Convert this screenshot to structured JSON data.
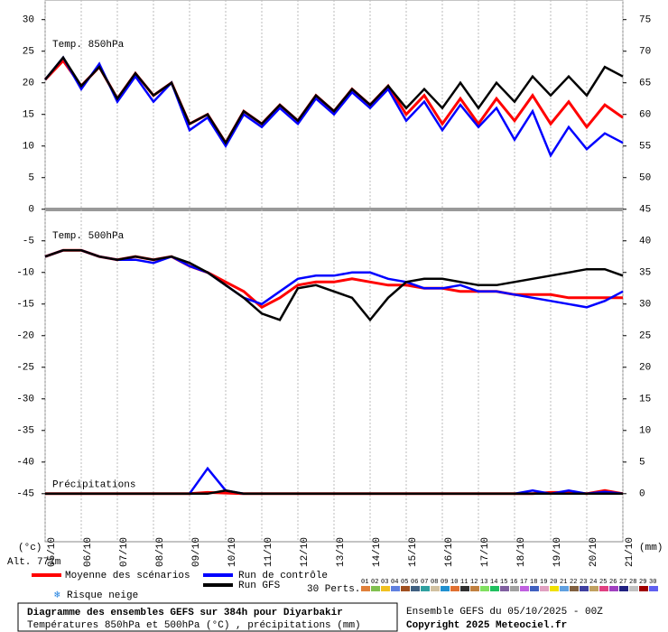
{
  "chart_data": {
    "type": "line",
    "title": "Diagramme des ensembles GEFS sur 384h pour Diyarbakir",
    "subtitle": "Températures 850hPa et 500hPa (°C) , précipitations (mm)",
    "run_info": "Ensemble GEFS du 05/10/2025 - 00Z",
    "copyright": "Copyright 2025 Meteociel.fr",
    "y_unit": "(°c)",
    "y2_unit": "(mm)",
    "altitude": "Alt. 771m",
    "snow_legend": "Risque neige",
    "x": [
      0,
      12,
      24,
      36,
      48,
      60,
      72,
      84,
      96,
      108,
      120,
      132,
      144,
      156,
      168,
      180,
      192,
      204,
      216,
      228,
      240,
      252,
      264,
      276,
      288,
      300,
      312,
      324,
      336,
      348,
      360,
      372,
      384
    ],
    "xlim": [
      0,
      384
    ],
    "xticks": [
      {
        "value": 0,
        "label": "05/10"
      },
      {
        "value": 24,
        "label": "06/10"
      },
      {
        "value": 48,
        "label": "07/10"
      },
      {
        "value": 72,
        "label": "08/10"
      },
      {
        "value": 96,
        "label": "09/10"
      },
      {
        "value": 120,
        "label": "10/10"
      },
      {
        "value": 144,
        "label": "11/10"
      },
      {
        "value": 168,
        "label": "12/10"
      },
      {
        "value": 192,
        "label": "13/10"
      },
      {
        "value": 216,
        "label": "14/10"
      },
      {
        "value": 240,
        "label": "15/10"
      },
      {
        "value": 264,
        "label": "16/10"
      },
      {
        "value": 288,
        "label": "17/10"
      },
      {
        "value": 312,
        "label": "18/10"
      },
      {
        "value": 336,
        "label": "19/10"
      },
      {
        "value": 360,
        "label": "20/10"
      },
      {
        "value": 384,
        "label": "21/10"
      }
    ],
    "ylim": [
      -52.6,
      33.1
    ],
    "yticks": [
      30,
      25,
      20,
      15,
      10,
      5,
      0,
      -5,
      -10,
      -15,
      -20,
      -25,
      -30,
      -35,
      -40,
      -45
    ],
    "y2lim": [
      -7.6,
      78.1
    ],
    "y2ticks": [
      75,
      70,
      65,
      60,
      55,
      50,
      45,
      40,
      35,
      30,
      25,
      20,
      15,
      10,
      5,
      0
    ],
    "grid": true,
    "series": [
      {
        "name": "Moyenne des scénarios",
        "color": "#ff0000"
      },
      {
        "name": "Run de contrôle",
        "color": "#0000ff"
      },
      {
        "name": "Run GFS",
        "color": "#000000"
      }
    ],
    "panels": [
      {
        "label": "Temp. 850hPa",
        "axis": "y",
        "values": [
          [
            20.5,
            23.5,
            19.5,
            22.5,
            17.5,
            21.5,
            18,
            20,
            13.5,
            15,
            10.5,
            15.5,
            13.5,
            16.5,
            14,
            18,
            15.5,
            19,
            16.5,
            19.5,
            15,
            18,
            13.5,
            17.5,
            13.5,
            17.5,
            14,
            18,
            13.5,
            17,
            13,
            16.5,
            14.5
          ],
          [
            20.5,
            24,
            19,
            23,
            17,
            21,
            17,
            20,
            12.5,
            14.5,
            10,
            15,
            13,
            16,
            13.5,
            17.5,
            15,
            18.5,
            16,
            19,
            14,
            17,
            12.5,
            16.5,
            13,
            16,
            11,
            15.5,
            8.5,
            13,
            9.5,
            12,
            10.5
          ],
          [
            20.5,
            24,
            19.5,
            22.5,
            17.5,
            21.5,
            18,
            20,
            13.5,
            15,
            10.5,
            15.5,
            13.5,
            16.5,
            14,
            18,
            15.5,
            19,
            16.5,
            19.5,
            16,
            19,
            16,
            20,
            16,
            20,
            17,
            21,
            18,
            21,
            18,
            22.5,
            21
          ]
        ]
      },
      {
        "label": "Temp. 500hPa",
        "axis": "y",
        "values": [
          [
            -7.5,
            -6.5,
            -6.5,
            -7.5,
            -8,
            -7.5,
            -8,
            -7.5,
            -9,
            -10,
            -11.5,
            -13,
            -15.5,
            -14,
            -12,
            -11.5,
            -11.5,
            -11,
            -11.5,
            -12,
            -12,
            -12.5,
            -12.5,
            -13,
            -13,
            -13,
            -13.5,
            -13.5,
            -13.5,
            -14,
            -14,
            -14,
            -14
          ],
          [
            -7.5,
            -6.5,
            -6.5,
            -7.5,
            -8,
            -8,
            -8.5,
            -7.5,
            -9,
            -10,
            -12,
            -14,
            -15,
            -13,
            -11,
            -10.5,
            -10.5,
            -10,
            -10,
            -11,
            -11.5,
            -12.5,
            -12.5,
            -12,
            -13,
            -13,
            -13.5,
            -14,
            -14.5,
            -15,
            -15.5,
            -14.5,
            -13
          ],
          [
            -7.5,
            -6.5,
            -6.5,
            -7.5,
            -8,
            -7.5,
            -8,
            -7.5,
            -8.5,
            -10,
            -12,
            -14,
            -16.5,
            -17.5,
            -12.5,
            -12,
            -13,
            -14,
            -17.5,
            -14,
            -11.5,
            -11,
            -11,
            -11.5,
            -12,
            -12,
            -11.5,
            -11,
            -10.5,
            -10,
            -9.5,
            -9.5,
            -10.5
          ]
        ]
      },
      {
        "label": "Précipitations",
        "axis": "y2",
        "values": [
          [
            0,
            0,
            0,
            0,
            0,
            0,
            0,
            0,
            0,
            0.2,
            0.1,
            0,
            0,
            0,
            0,
            0,
            0,
            0,
            0,
            0,
            0,
            0,
            0,
            0,
            0,
            0,
            0,
            0,
            0.2,
            0.2,
            0,
            0.5,
            0
          ],
          [
            0,
            0,
            0,
            0,
            0,
            0,
            0,
            0,
            0,
            4,
            0.5,
            0,
            0,
            0,
            0,
            0,
            0,
            0,
            0,
            0,
            0,
            0,
            0,
            0,
            0,
            0,
            0,
            0.5,
            0,
            0.5,
            0,
            0.3,
            0
          ],
          [
            0,
            0,
            0,
            0,
            0,
            0,
            0,
            0,
            0,
            0,
            0.5,
            0,
            0,
            0,
            0,
            0,
            0,
            0,
            0,
            0,
            0,
            0,
            0,
            0,
            0,
            0,
            0,
            0,
            0,
            0,
            0,
            0,
            0
          ]
        ]
      }
    ],
    "perturbations": {
      "label": "30 Perts.",
      "names": [
        "01",
        "02",
        "03",
        "04",
        "05",
        "06",
        "07",
        "08",
        "09",
        "10",
        "11",
        "12",
        "13",
        "14",
        "15",
        "16",
        "17",
        "18",
        "19",
        "20",
        "21",
        "22",
        "23",
        "24",
        "25",
        "26",
        "27",
        "28",
        "29",
        "30"
      ],
      "colors": [
        "#e0803a",
        "#80c050",
        "#f0c020",
        "#6080e0",
        "#a05020",
        "#406080",
        "#30a0a0",
        "#d0c0a0",
        "#2090d0",
        "#e07030",
        "#303030",
        "#c08040",
        "#80e060",
        "#20c060",
        "#8060a0",
        "#a0a0a0",
        "#c060e0",
        "#4060c0",
        "#e0a0c0",
        "#f0e000",
        "#60a0e0",
        "#806040",
        "#4040a0",
        "#c0a060",
        "#e04080",
        "#a040c0",
        "#202080",
        "#c0c0c0",
        "#a00000",
        "#6060f0"
      ]
    }
  }
}
